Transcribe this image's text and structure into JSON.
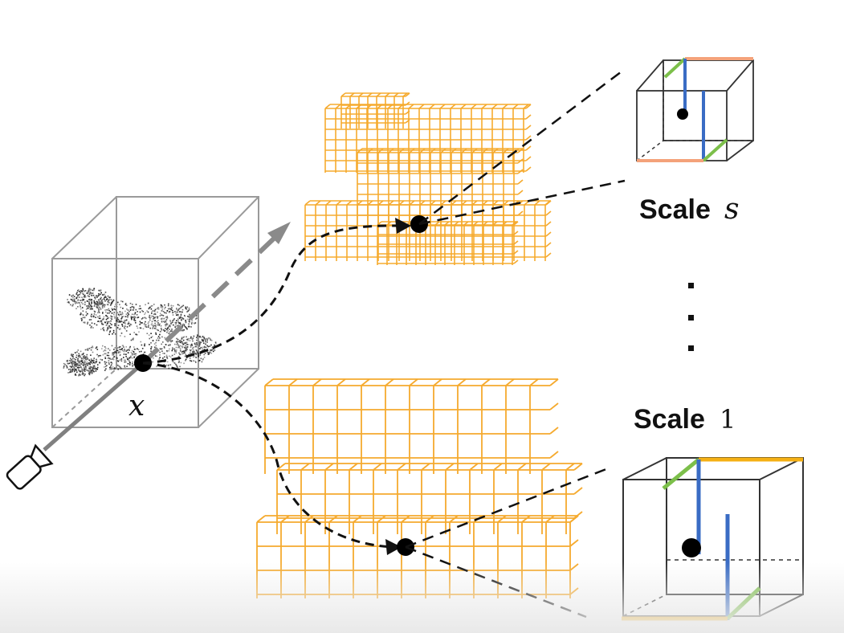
{
  "labels": {
    "point": "x",
    "scale_top_word": "Scale",
    "scale_top_var": "s",
    "scale_bottom_word": "Scale",
    "scale_bottom_var": "1"
  },
  "colors": {
    "voxel_orange": "#f5a623",
    "cell_outline": "#222222",
    "edge_blue": "#3a6cc4",
    "edge_green": "#7cbf4a",
    "edge_orange_light": "#f4a27a",
    "edge_orange": "#f5b014",
    "cube_frame": "#9a9a9a"
  },
  "icons": [
    "camera-icon"
  ]
}
